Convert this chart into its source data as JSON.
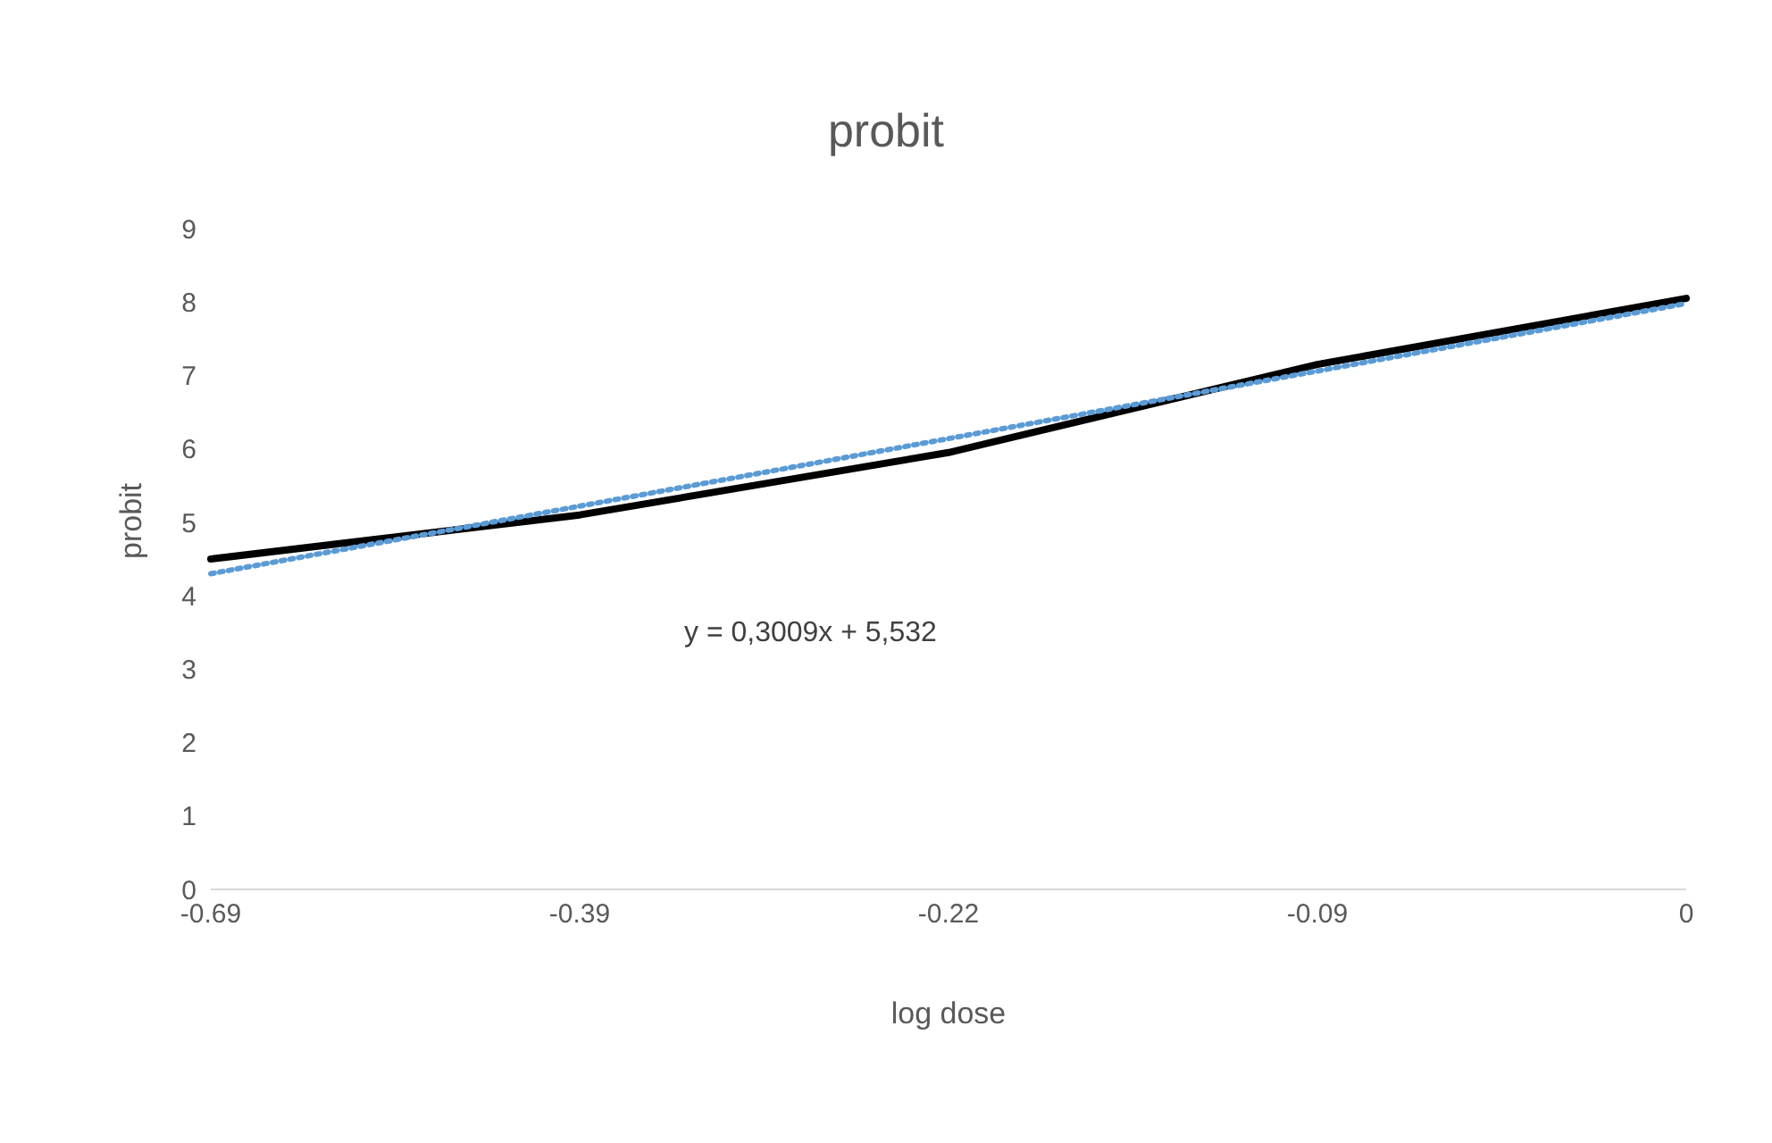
{
  "chart_data": {
    "type": "line",
    "title": "probit",
    "xlabel": "log dose",
    "ylabel": "probit",
    "categories": [
      "-0.69",
      "-0.39",
      "-0.22",
      "-0.09",
      "0"
    ],
    "series": [
      {
        "color": "#000000",
        "values": [
          4.5,
          5.1,
          5.95,
          7.15,
          8.05
        ]
      },
      {
        "type": "line",
        "color": "#5b9bd5",
        "line_style": "dotted",
        "values": [
          4.3,
          5.22,
          6.14,
          7.06,
          7.98
        ]
      }
    ],
    "ylim": [
      0,
      9
    ],
    "yticks": [
      0,
      1,
      2,
      3,
      4,
      5,
      6,
      7,
      8,
      9
    ],
    "grid": false,
    "legend": false,
    "marker": "none",
    "annotations": [
      "y = 0,3009x + 5,532"
    ]
  }
}
